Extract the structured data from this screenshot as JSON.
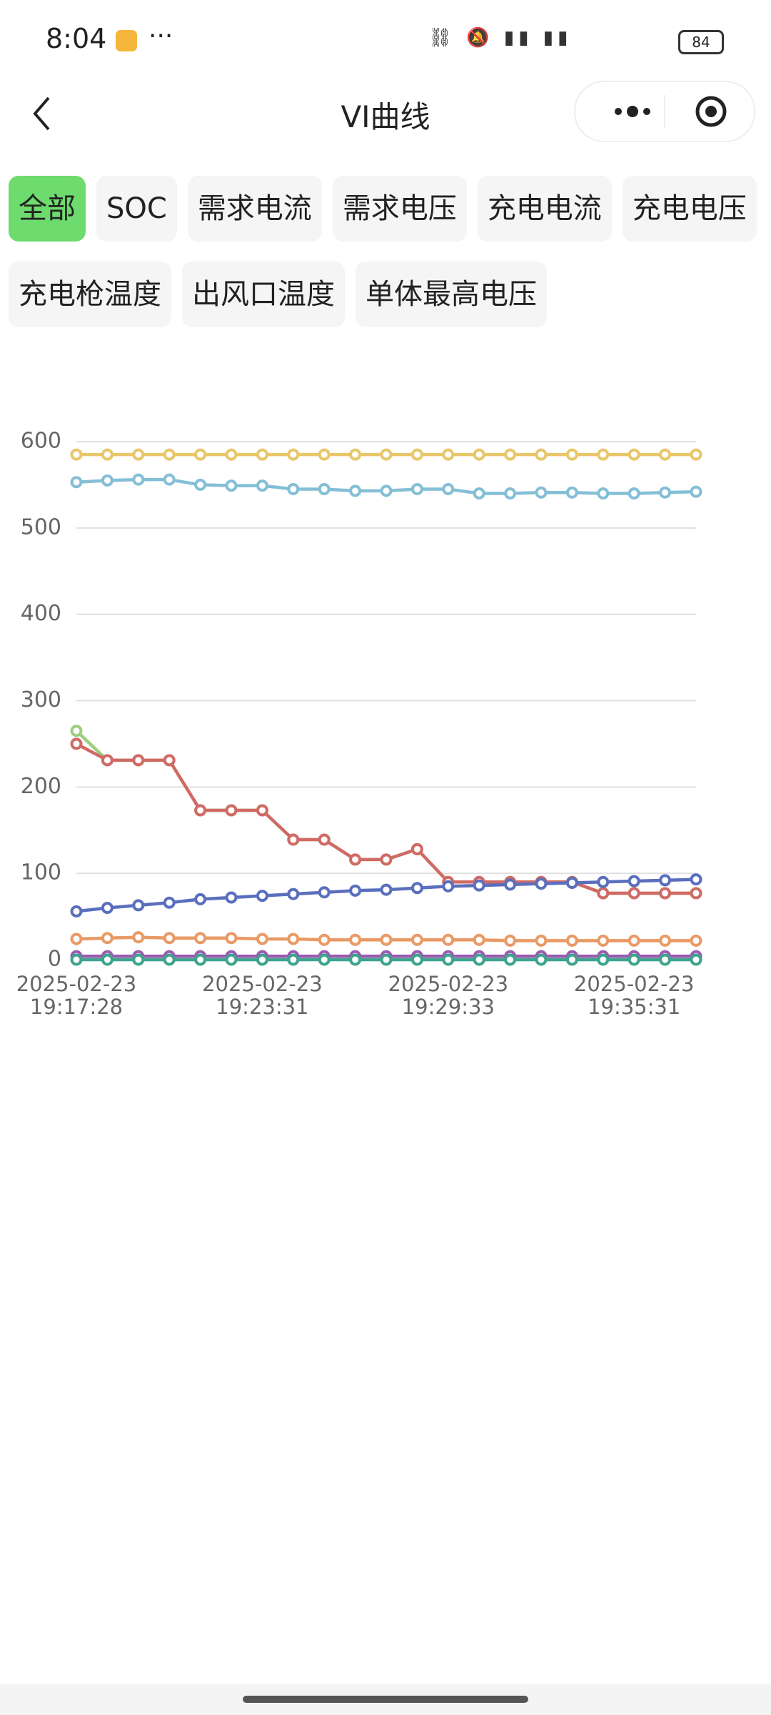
{
  "status_bar": {
    "time": "8:04",
    "battery": "84"
  },
  "nav": {
    "title": "VI曲线"
  },
  "tabs": [
    "全部",
    "SOC",
    "需求电流",
    "需求电压",
    "充电电流",
    "充电电压",
    "充电枪温度",
    "出风口温度",
    "单体最高电压"
  ],
  "chart_data": {
    "type": "line",
    "categories": [
      "2025-02-23 19:17:28",
      null,
      null,
      null,
      null,
      null,
      "2025-02-23 19:23:31",
      null,
      null,
      null,
      null,
      null,
      "2025-02-23 19:29:33",
      null,
      null,
      null,
      null,
      null,
      "2025-02-23 19:35:31",
      null,
      null
    ],
    "ylim": [
      0,
      600
    ],
    "yticks": [
      0,
      100,
      200,
      300,
      400,
      500,
      600
    ],
    "grid": true,
    "series": [
      {
        "color": "#e8c66a",
        "values": [
          585,
          585,
          585,
          585,
          585,
          585,
          585,
          585,
          585,
          585,
          585,
          585,
          585,
          585,
          585,
          585,
          585,
          585,
          585,
          585,
          585
        ]
      },
      {
        "color": "#84bfd6",
        "values": [
          553,
          555,
          556,
          556,
          550,
          549,
          549,
          545,
          545,
          543,
          543,
          545,
          545,
          540,
          540,
          541,
          541,
          540,
          540,
          541,
          542
        ]
      },
      {
        "color": "#9dce7e",
        "values": [
          265,
          231,
          231,
          231,
          173,
          173,
          173,
          139,
          139,
          116,
          116,
          128,
          90,
          90,
          90,
          90,
          90,
          77,
          77,
          77,
          77
        ]
      },
      {
        "color": "#d06a65",
        "values": [
          250,
          231,
          231,
          231,
          173,
          173,
          173,
          139,
          139,
          116,
          116,
          128,
          90,
          90,
          90,
          90,
          90,
          77,
          77,
          77,
          77
        ]
      },
      {
        "color": "#5a6fbd",
        "values": [
          56,
          60,
          63,
          66,
          70,
          72,
          74,
          76,
          78,
          80,
          81,
          83,
          85,
          86,
          87,
          88,
          89,
          90,
          91,
          92,
          93
        ]
      },
      {
        "color": "#e99a65",
        "values": [
          24,
          25,
          26,
          25,
          25,
          25,
          24,
          24,
          23,
          23,
          23,
          23,
          23,
          23,
          22,
          22,
          22,
          22,
          22,
          22,
          22
        ]
      },
      {
        "color": "#9a5bb0",
        "values": [
          4,
          4,
          4,
          4,
          4,
          4,
          4,
          4,
          4,
          4,
          4,
          4,
          4,
          4,
          4,
          4,
          4,
          4,
          4,
          4,
          4
        ]
      },
      {
        "color": "#3ea38f",
        "values": [
          0,
          0,
          0,
          0,
          0,
          0,
          0,
          0,
          0,
          0,
          0,
          0,
          0,
          0,
          0,
          0,
          0,
          0,
          0,
          0,
          0
        ]
      }
    ]
  }
}
